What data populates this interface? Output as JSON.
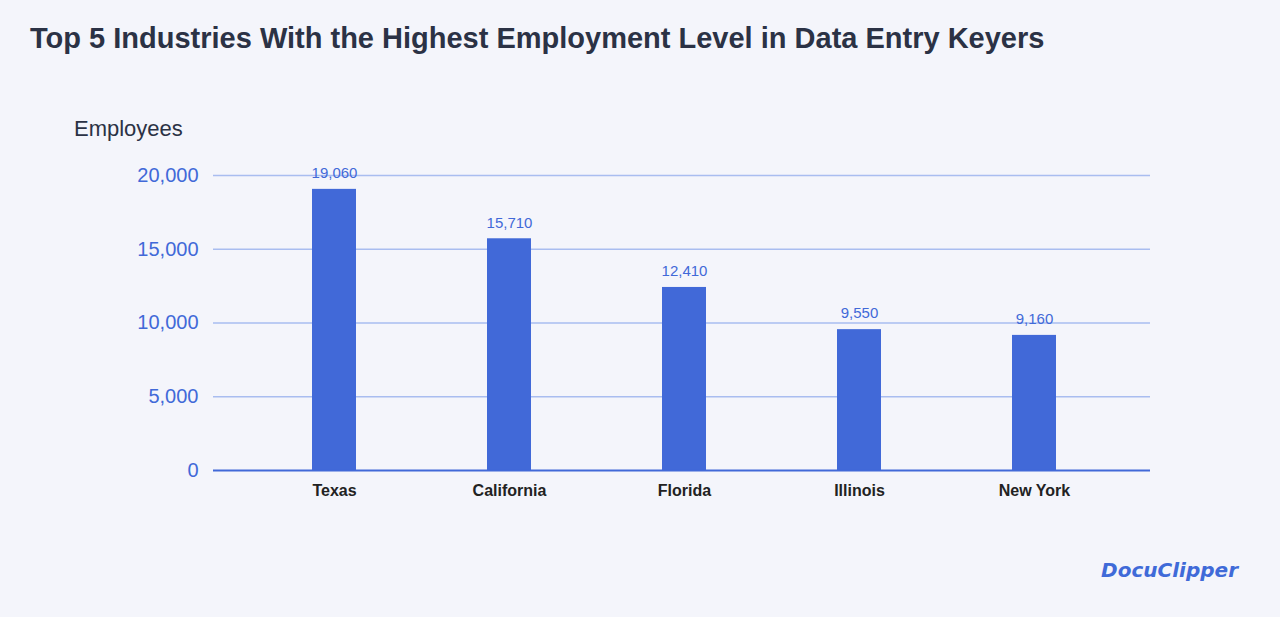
{
  "chart_data": {
    "type": "bar",
    "title": "Top 5 Industries With the Highest Employment Level in Data Entry Keyers",
    "y_label": "Employees",
    "categories": [
      "Texas",
      "California",
      "Florida",
      "Illinois",
      "New York"
    ],
    "values": [
      19060,
      15710,
      12410,
      9550,
      9160
    ],
    "value_labels": [
      "19,060",
      "15,710",
      "12,410",
      "9,550",
      "9,160"
    ],
    "color": "#4169d8",
    "ylim": [
      0,
      20000
    ],
    "yticks": [
      0,
      {
        "value": 5000,
        "label": "5,000"
      },
      {
        "value": 10000,
        "label": "10,000"
      },
      {
        "value": 15000,
        "label": "15,000"
      },
      {
        "value": 20000,
        "label": "20,000"
      }
    ],
    "grid": true,
    "data_labels": true,
    "annotations": [
      "DocuClipper"
    ]
  }
}
